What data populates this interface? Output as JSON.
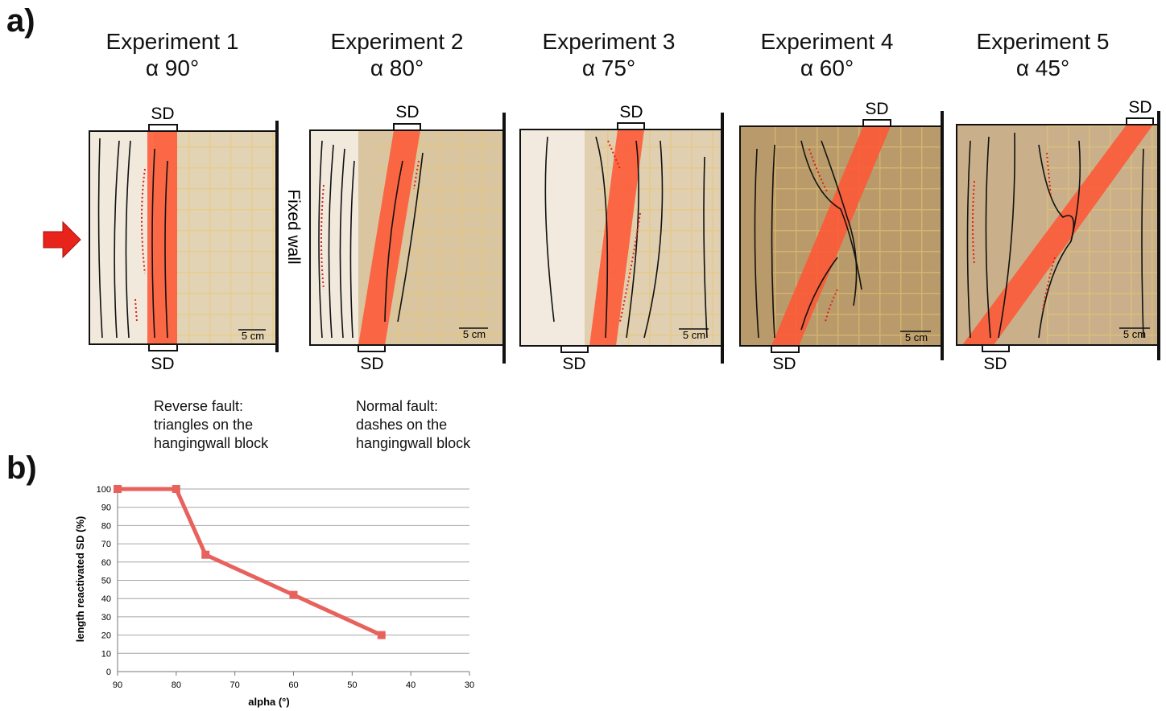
{
  "panel_a_label": "a)",
  "panel_b_label": "b)",
  "experiments": [
    {
      "title": "Experiment 1",
      "alpha": "α 90°"
    },
    {
      "title": "Experiment 2",
      "alpha": "α 80°"
    },
    {
      "title": "Experiment 3",
      "alpha": "α 75°"
    },
    {
      "title": "Experiment 4",
      "alpha": "α 60°"
    },
    {
      "title": "Experiment 5",
      "alpha": "α 45°"
    }
  ],
  "sd_label": "SD",
  "scale_label": "5 cm",
  "fixed_wall_label": "Fixed wall",
  "legend": {
    "reverse": [
      "Reverse fault:",
      "triangles on the",
      "hangingwall block"
    ],
    "normal": [
      "Normal fault:",
      "dashes on the",
      "hangingwall block"
    ]
  },
  "colors": {
    "shear_zone": "#ff5533",
    "normal_fault": "#e0201a",
    "arrow": "#e8231c",
    "sandbox": "#dcc9a6",
    "series_line": "#e8625d"
  },
  "chart_data": {
    "type": "line",
    "x": [
      90,
      80,
      75,
      60,
      45
    ],
    "series": [
      {
        "values": [
          100,
          100,
          64,
          42,
          20
        ]
      }
    ],
    "xlabel": "alpha (°)",
    "ylabel": "length reactivated SD (%)",
    "xlim": [
      90,
      30
    ],
    "ylim": [
      0,
      100
    ],
    "x_ticks": [
      90,
      80,
      70,
      60,
      50,
      40,
      30
    ],
    "y_ticks": [
      0,
      10,
      20,
      30,
      40,
      50,
      60,
      70,
      80,
      90,
      100
    ],
    "grid": "horizontal",
    "x_reversed": true,
    "marker": "square"
  }
}
